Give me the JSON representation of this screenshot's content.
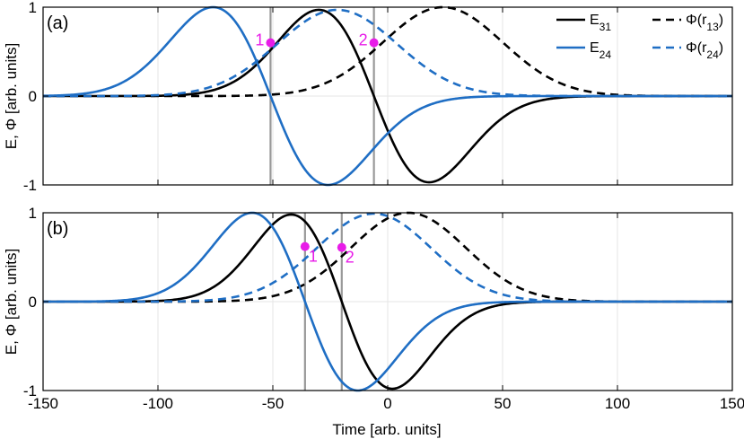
{
  "chart_data": [
    {
      "panel": "(a)",
      "type": "line",
      "xlabel": "",
      "ylabel": "E, Φ [arb. units]",
      "xlim": [
        -150,
        150
      ],
      "ylim": [
        -1,
        1
      ],
      "xticks": [
        -150,
        -100,
        -50,
        0,
        50,
        100,
        150
      ],
      "yticks": [
        -1,
        0,
        1
      ],
      "grid": true,
      "legend_placement": "top-right",
      "series": [
        {
          "name": "E",
          "subscript": "31",
          "style": "solid",
          "color": "#000000",
          "kind": "gaussian_derivative",
          "center": -6,
          "sigma": 24,
          "amplitude": 0.97
        },
        {
          "name": "Φ(r",
          "subscript": "13",
          "name_suffix": ")",
          "style": "dashed",
          "color": "#000000",
          "kind": "gaussian",
          "center": 24,
          "sigma": 26,
          "amplitude": 1.0
        },
        {
          "name": "E",
          "subscript": "24",
          "style": "solid",
          "color": "#1f6ec4",
          "kind": "gaussian_derivative",
          "center": -51,
          "sigma": 25,
          "amplitude": 1.0
        },
        {
          "name": "Φ(r",
          "subscript": "24",
          "name_suffix": ")",
          "style": "dashed",
          "color": "#1f6ec4",
          "kind": "gaussian",
          "center": -22,
          "sigma": 26,
          "amplitude": 0.97
        }
      ],
      "vlines": [
        -51,
        -6
      ],
      "markers": [
        {
          "label": "1",
          "x": -51,
          "y": 0.6
        },
        {
          "label": "2",
          "x": -6,
          "y": 0.6
        }
      ]
    },
    {
      "panel": "(b)",
      "type": "line",
      "xlabel": "Time [arb. units]",
      "ylabel": "E, Φ [arb. units]",
      "xlim": [
        -150,
        150
      ],
      "ylim": [
        -1,
        1
      ],
      "xticks": [
        -150,
        -100,
        -50,
        0,
        50,
        100,
        150
      ],
      "yticks": [
        -1,
        0,
        1
      ],
      "grid": true,
      "series": [
        {
          "name": "E",
          "subscript": "31",
          "style": "solid",
          "color": "#000000",
          "kind": "gaussian_derivative",
          "center": -20,
          "sigma": 22,
          "amplitude": 0.98
        },
        {
          "name": "Φ(r",
          "subscript": "13",
          "name_suffix": ")",
          "style": "dashed",
          "color": "#000000",
          "kind": "gaussian",
          "center": 9,
          "sigma": 25,
          "amplitude": 1.0
        },
        {
          "name": "E",
          "subscript": "24",
          "style": "solid",
          "color": "#1f6ec4",
          "kind": "gaussian_derivative",
          "center": -36,
          "sigma": 23,
          "amplitude": 1.0
        },
        {
          "name": "Φ(r",
          "subscript": "24",
          "name_suffix": ")",
          "style": "dashed",
          "color": "#1f6ec4",
          "kind": "gaussian",
          "center": -6,
          "sigma": 25,
          "amplitude": 0.99
        }
      ],
      "vlines": [
        -36,
        -20
      ],
      "markers": [
        {
          "label": "1",
          "x": -36,
          "y": 0.62
        },
        {
          "label": "2",
          "x": -20,
          "y": 0.61
        }
      ]
    }
  ],
  "colors": {
    "black_series": "#000000",
    "blue_series": "#1f6ec4",
    "marker": "#e81ce8",
    "vline": "#999999",
    "grid": "#e6e6e6"
  }
}
